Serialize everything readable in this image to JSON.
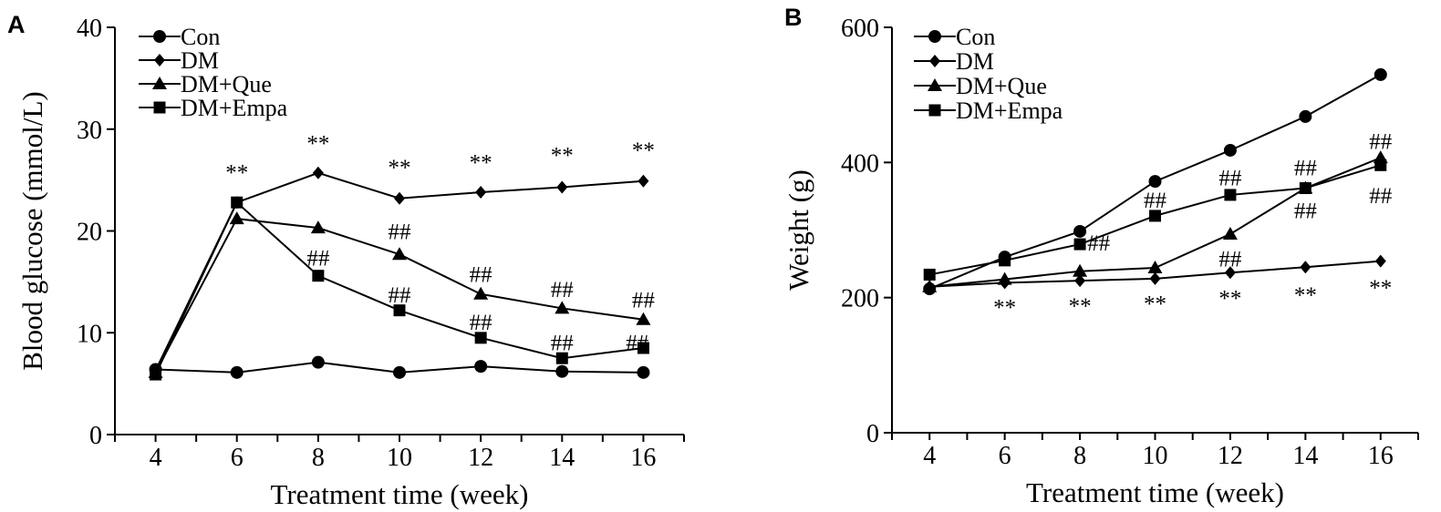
{
  "chart_data": [
    {
      "type": "line",
      "panel_label": "A",
      "xlabel": "Treatment time (week)",
      "ylabel": "Blood glucose (mmol/L)",
      "x": [
        4,
        6,
        8,
        10,
        12,
        14,
        16
      ],
      "xlim": [
        3,
        17
      ],
      "ylim": [
        0,
        40
      ],
      "xticks": [
        4,
        6,
        8,
        10,
        12,
        14,
        16
      ],
      "yticks": [
        0,
        10,
        20,
        30,
        40
      ],
      "grid": false,
      "legend_position": "top-left",
      "series": [
        {
          "name": "Con",
          "marker": "circle",
          "values": [
            6.4,
            6.1,
            7.1,
            6.1,
            6.7,
            6.2,
            6.1
          ]
        },
        {
          "name": "DM",
          "marker": "diamond",
          "values": [
            6.3,
            22.8,
            25.7,
            23.2,
            23.8,
            24.3,
            24.9
          ]
        },
        {
          "name": "DM+Que",
          "marker": "triangle",
          "values": [
            6.1,
            21.2,
            20.3,
            17.7,
            13.8,
            12.4,
            11.3
          ]
        },
        {
          "name": "DM+Empa",
          "marker": "square",
          "values": [
            5.9,
            22.8,
            15.6,
            12.2,
            9.5,
            7.5,
            8.5
          ]
        }
      ],
      "annotations": [
        {
          "text": "**",
          "x": 6,
          "y": 25.8
        },
        {
          "text": "**",
          "x": 8,
          "y": 28.7
        },
        {
          "text": "**",
          "x": 10,
          "y": 26.3
        },
        {
          "text": "**",
          "x": 12,
          "y": 26.8
        },
        {
          "text": "**",
          "x": 14,
          "y": 27.5
        },
        {
          "text": "**",
          "x": 16,
          "y": 28.0
        },
        {
          "text": "##",
          "x": 8,
          "y": 17.4
        },
        {
          "text": "##",
          "x": 10,
          "y": 20.0
        },
        {
          "text": "##",
          "x": 10,
          "y": 13.8
        },
        {
          "text": "##",
          "x": 12,
          "y": 15.8
        },
        {
          "text": "##",
          "x": 12,
          "y": 11.1
        },
        {
          "text": "##",
          "x": 14,
          "y": 14.3
        },
        {
          "text": "##",
          "x": 14,
          "y": 9.1
        },
        {
          "text": "##",
          "x": 16,
          "y": 13.3
        },
        {
          "text": "##",
          "x": 15.85,
          "y": 9.1
        }
      ]
    },
    {
      "type": "line",
      "panel_label": "B",
      "xlabel": "Treatment time (week)",
      "ylabel": "Weight (g)",
      "x": [
        4,
        6,
        8,
        10,
        12,
        14,
        16
      ],
      "xlim": [
        3,
        17
      ],
      "ylim": [
        0,
        600
      ],
      "xticks": [
        4,
        6,
        8,
        10,
        12,
        14,
        16
      ],
      "yticks": [
        0,
        200,
        400,
        600
      ],
      "grid": false,
      "legend_position": "top-left",
      "series": [
        {
          "name": "Con",
          "marker": "circle",
          "values": [
            213,
            260,
            298,
            372,
            418,
            468,
            530
          ]
        },
        {
          "name": "DM",
          "marker": "diamond",
          "values": [
            216,
            222,
            225,
            228,
            237,
            245,
            254
          ]
        },
        {
          "name": "DM+Que",
          "marker": "triangle",
          "values": [
            216,
            227,
            239,
            244,
            294,
            362,
            407
          ]
        },
        {
          "name": "DM+Empa",
          "marker": "square",
          "values": [
            234,
            255,
            279,
            321,
            352,
            362,
            396
          ]
        }
      ],
      "annotations": [
        {
          "text": "**",
          "x": 6,
          "y": 187
        },
        {
          "text": "**",
          "x": 8,
          "y": 189
        },
        {
          "text": "**",
          "x": 10,
          "y": 192
        },
        {
          "text": "**",
          "x": 12,
          "y": 200
        },
        {
          "text": "**",
          "x": 14,
          "y": 205
        },
        {
          "text": "**",
          "x": 16,
          "y": 216
        },
        {
          "text": "##",
          "x": 8.5,
          "y": 282
        },
        {
          "text": "##",
          "x": 10,
          "y": 345
        },
        {
          "text": "##",
          "x": 12,
          "y": 378
        },
        {
          "text": "##",
          "x": 12,
          "y": 258
        },
        {
          "text": "##",
          "x": 14,
          "y": 393
        },
        {
          "text": "##",
          "x": 14,
          "y": 330
        },
        {
          "text": "##",
          "x": 16,
          "y": 432
        },
        {
          "text": "##",
          "x": 16,
          "y": 352
        }
      ]
    }
  ]
}
